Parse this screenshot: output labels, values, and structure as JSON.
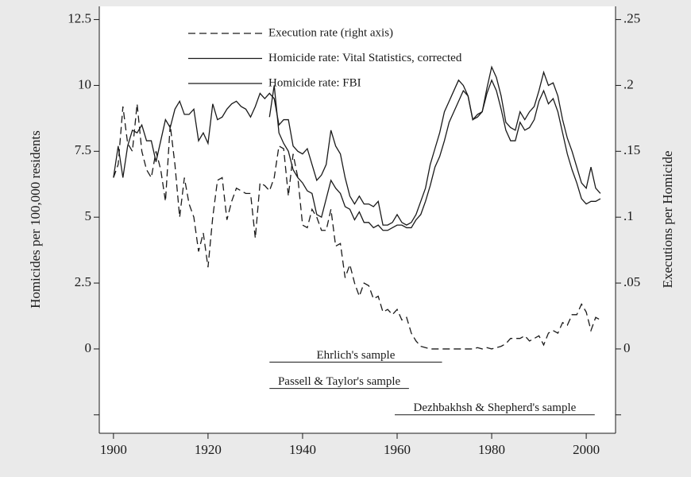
{
  "chart_data": {
    "type": "line",
    "x": [
      1900,
      1901,
      1902,
      1903,
      1904,
      1905,
      1906,
      1907,
      1908,
      1909,
      1910,
      1911,
      1912,
      1913,
      1914,
      1915,
      1916,
      1917,
      1918,
      1919,
      1920,
      1921,
      1922,
      1923,
      1924,
      1925,
      1926,
      1927,
      1928,
      1929,
      1930,
      1931,
      1932,
      1933,
      1934,
      1935,
      1936,
      1937,
      1938,
      1939,
      1940,
      1941,
      1942,
      1943,
      1944,
      1945,
      1946,
      1947,
      1948,
      1949,
      1950,
      1951,
      1952,
      1953,
      1954,
      1955,
      1956,
      1957,
      1958,
      1959,
      1960,
      1961,
      1962,
      1963,
      1964,
      1965,
      1966,
      1967,
      1968,
      1969,
      1970,
      1971,
      1972,
      1973,
      1974,
      1975,
      1976,
      1977,
      1978,
      1979,
      1980,
      1981,
      1982,
      1983,
      1984,
      1985,
      1986,
      1987,
      1988,
      1989,
      1990,
      1991,
      1992,
      1993,
      1994,
      1995,
      1996,
      1997,
      1998,
      1999,
      2000,
      2001,
      2002,
      2003
    ],
    "series": [
      {
        "name": "Execution rate (right axis)",
        "color": "#1a1a1a",
        "style": "dashed",
        "axis": "y2",
        "values": [
          0.13,
          0.14,
          0.184,
          0.156,
          0.15,
          0.186,
          0.15,
          0.136,
          0.13,
          0.15,
          0.136,
          0.112,
          0.17,
          0.14,
          0.1,
          0.13,
          0.11,
          0.1,
          0.074,
          0.088,
          0.062,
          0.1,
          0.128,
          0.13,
          0.098,
          0.112,
          0.122,
          0.12,
          0.118,
          0.118,
          0.084,
          0.126,
          0.124,
          0.12,
          0.13,
          0.154,
          0.152,
          0.116,
          0.148,
          0.13,
          0.094,
          0.092,
          0.106,
          0.1,
          0.09,
          0.09,
          0.106,
          0.078,
          0.08,
          0.054,
          0.064,
          0.05,
          0.04,
          0.05,
          0.048,
          0.038,
          0.04,
          0.028,
          0.03,
          0.026,
          0.03,
          0.022,
          0.024,
          0.012,
          0.006,
          0.002,
          0.001,
          0,
          0,
          0,
          0,
          0,
          0,
          0,
          0,
          0,
          0,
          0.001,
          0,
          0.001,
          0,
          0.001,
          0.002,
          0.004,
          0.008,
          0.008,
          0.008,
          0.01,
          0.006,
          0.008,
          0.01,
          0.003,
          0.012,
          0.014,
          0.012,
          0.02,
          0.018,
          0.026,
          0.026,
          0.034,
          0.028,
          0.014,
          0.024,
          0.022
        ]
      },
      {
        "name": "Homicide rate: Vital Statistics, corrected",
        "color": "#1a1a1a",
        "style": "solid",
        "values": [
          6.5,
          7.7,
          6.5,
          7.7,
          8.3,
          8.2,
          8.5,
          7.9,
          7.9,
          7.1,
          7.9,
          8.7,
          8.4,
          9.1,
          9.4,
          8.9,
          8.9,
          9.1,
          7.9,
          8.2,
          7.8,
          9.3,
          8.7,
          8.8,
          9.1,
          9.3,
          9.4,
          9.2,
          9.1,
          8.8,
          9.2,
          9.7,
          9.5,
          9.7,
          9.5,
          8.5,
          8.7,
          8.7,
          7.7,
          7.5,
          7.4,
          7.6,
          7.0,
          6.4,
          6.6,
          7.0,
          8.3,
          7.7,
          7.4,
          6.5,
          5.8,
          5.5,
          5.8,
          5.5,
          5.5,
          5.4,
          5.6,
          4.7,
          4.7,
          4.8,
          5.1,
          4.8,
          4.7,
          4.8,
          5.1,
          5.6,
          6.1,
          7.0,
          7.6,
          8.2,
          9.0,
          9.4,
          9.8,
          10.2,
          10.0,
          9.6,
          8.7,
          8.9,
          9.0,
          9.9,
          10.7,
          10.3,
          9.6,
          8.6,
          8.4,
          8.3,
          9.0,
          8.7,
          9.0,
          9.2,
          9.8,
          10.5,
          10.0,
          10.1,
          9.6,
          8.7,
          8.0,
          7.5,
          6.9,
          6.3,
          6.1,
          6.9,
          6.1,
          5.9
        ]
      },
      {
        "name": "Homicide rate: FBI",
        "color": "#1a1a1a",
        "style": "solid",
        "values": [
          null,
          null,
          null,
          null,
          null,
          null,
          null,
          null,
          null,
          null,
          null,
          null,
          null,
          null,
          null,
          null,
          null,
          null,
          null,
          null,
          null,
          null,
          null,
          null,
          null,
          null,
          null,
          null,
          null,
          null,
          null,
          null,
          null,
          8.8,
          10.0,
          8.2,
          7.8,
          7.5,
          6.8,
          6.5,
          6.3,
          6.0,
          5.9,
          5.1,
          5.0,
          5.7,
          6.4,
          6.1,
          5.9,
          5.4,
          5.3,
          4.9,
          5.2,
          4.8,
          4.8,
          4.6,
          4.7,
          4.5,
          4.5,
          4.6,
          4.7,
          4.7,
          4.6,
          4.6,
          4.9,
          5.1,
          5.6,
          6.2,
          6.9,
          7.3,
          7.9,
          8.6,
          9.0,
          9.4,
          9.8,
          9.6,
          8.7,
          8.8,
          9.0,
          9.7,
          10.2,
          9.8,
          9.1,
          8.3,
          7.9,
          7.9,
          8.6,
          8.3,
          8.4,
          8.7,
          9.4,
          9.8,
          9.3,
          9.5,
          9.0,
          8.2,
          7.4,
          6.8,
          6.3,
          5.7,
          5.5,
          5.6,
          5.6,
          5.7
        ]
      }
    ],
    "ylabel": "Homicides per 100,000 residents",
    "y2label": "Executions per Homicide",
    "xlim": [
      1897,
      2006.2
    ],
    "xticks": [
      1900,
      1920,
      1940,
      1960,
      1980,
      2000
    ],
    "ylim": [
      -3.2,
      13
    ],
    "yticks": [
      {
        "value": -2.5,
        "label": null
      },
      0,
      2.5,
      5,
      7.5,
      10,
      12.5
    ],
    "y2lim": [
      -0.064,
      0.26
    ],
    "y2ticks": [
      {
        "value": -0.05,
        "label": null
      },
      0,
      {
        "value": 0.05,
        "label": ".05"
      },
      {
        "value": 0.1,
        "label": ".1"
      },
      {
        "value": 0.15,
        "label": ".15"
      },
      {
        "value": 0.2,
        "label": ".2"
      },
      {
        "value": 0.25,
        "label": ".25"
      }
    ],
    "legend": "top",
    "grid": false,
    "annotations": [
      {
        "text": "Ehrlich's sample",
        "x": [
          1933,
          1969.5
        ],
        "y": -0.5
      },
      {
        "text": "Passell & Taylor's sample",
        "x": [
          1933,
          1962.5
        ],
        "y": -1.5
      },
      {
        "text": "Dezhbakhsh & Shepherd's sample",
        "x": [
          1959.5,
          2001.8
        ],
        "y": -2.5
      }
    ]
  }
}
